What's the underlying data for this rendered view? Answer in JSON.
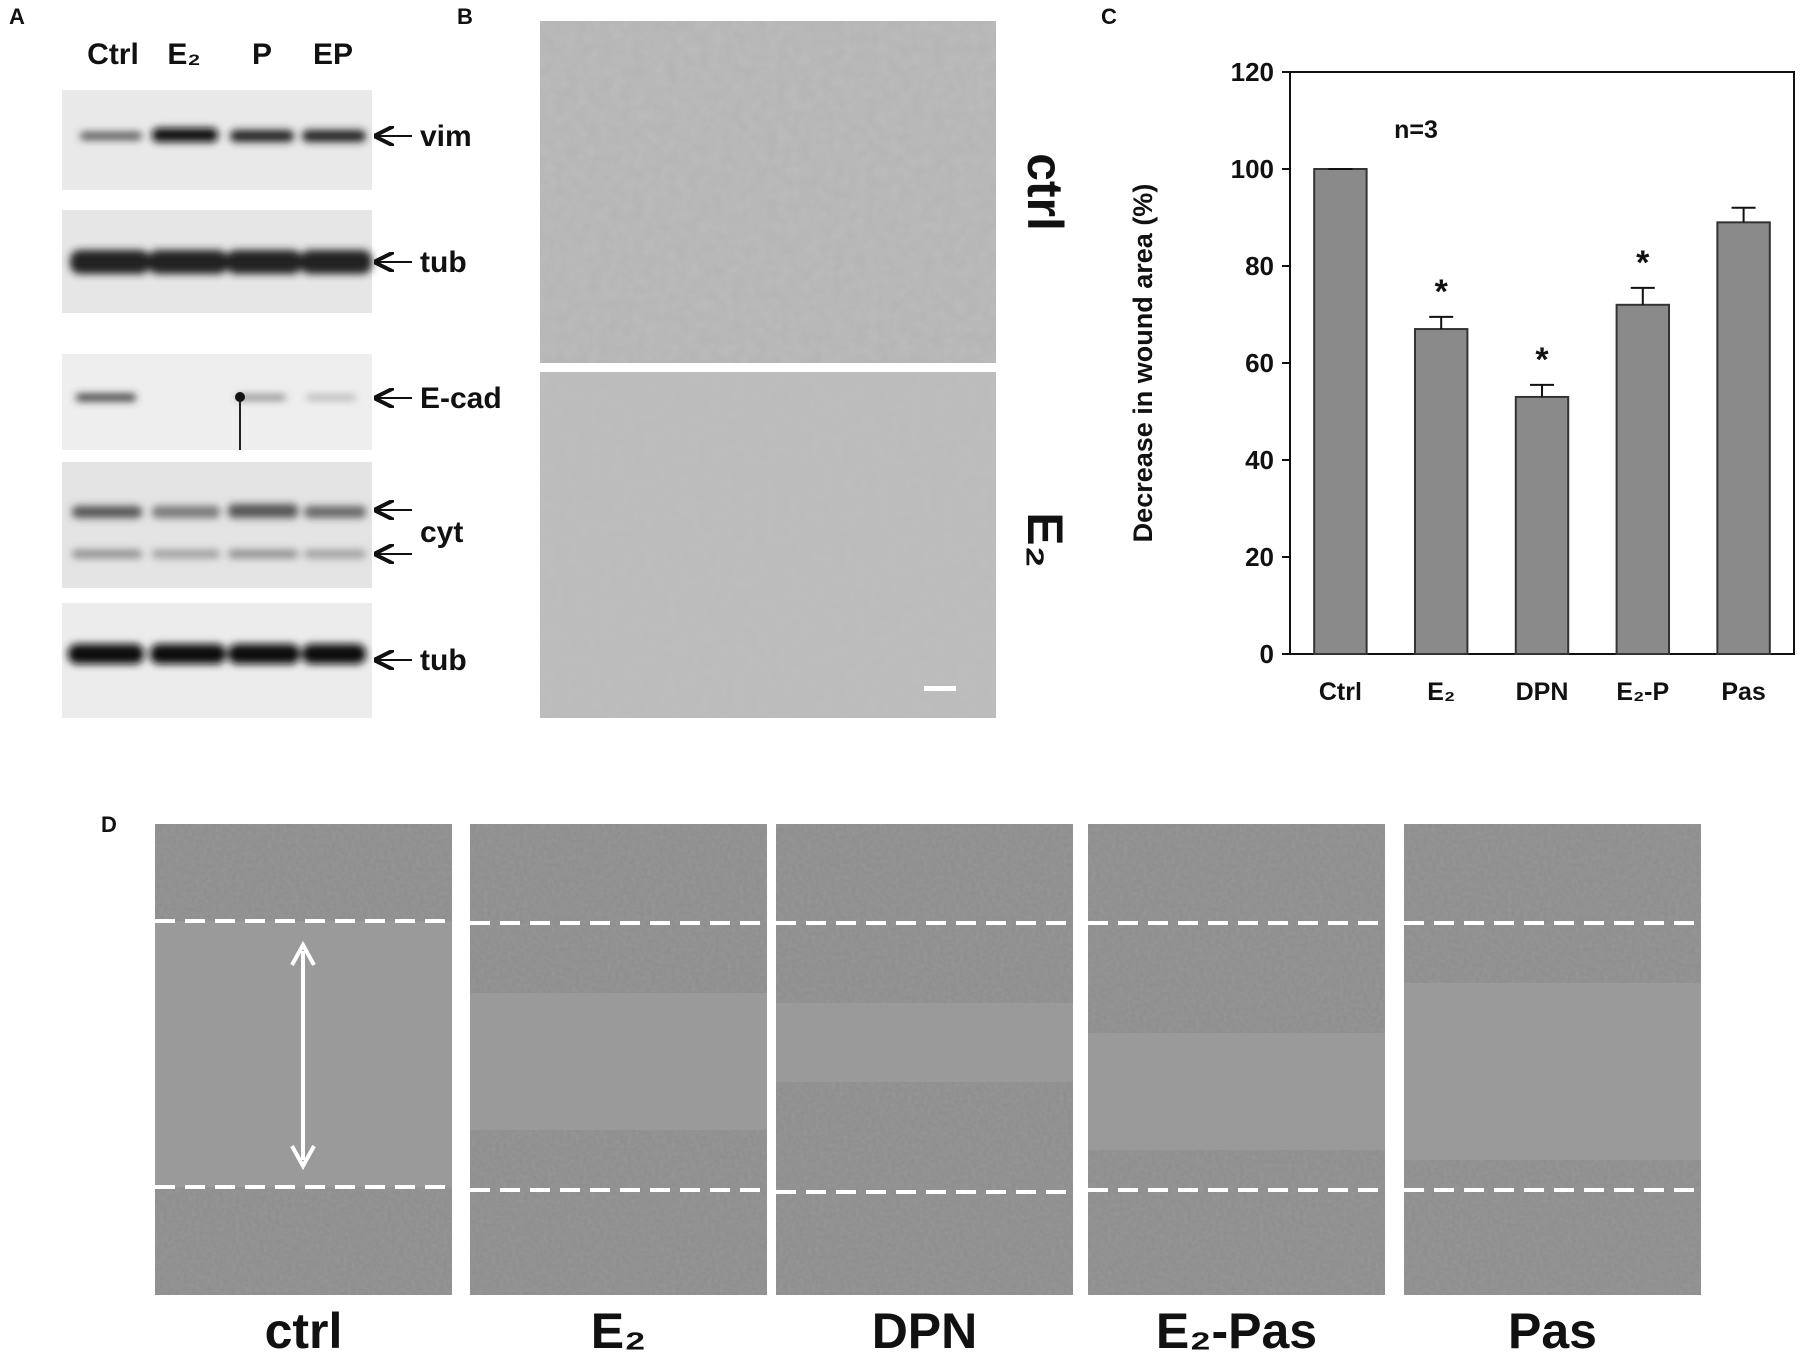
{
  "panels": {
    "a": {
      "letter": "A",
      "lanes": [
        "Ctrl",
        "E₂",
        "P",
        "EP"
      ],
      "rows": [
        "vim",
        "tub",
        "E-cad",
        "cyt",
        "tub"
      ]
    },
    "b": {
      "letter": "B",
      "labels": [
        "ctrl",
        "E₂"
      ]
    },
    "c": {
      "letter": "C"
    },
    "d": {
      "letter": "D",
      "labels": [
        "ctrl",
        "E₂",
        "DPN",
        "E₂-Pas",
        "Pas"
      ]
    }
  },
  "chart_data": {
    "type": "bar",
    "categories": [
      "Ctrl",
      "E₂",
      "DPN",
      "E₂-P",
      "Pas"
    ],
    "values": [
      100,
      67,
      53,
      72,
      89
    ],
    "errors": [
      0,
      2.5,
      2.5,
      3.5,
      3
    ],
    "significance_labels": [
      null,
      "*",
      "*",
      "*",
      null
    ],
    "color": "#8a8a8a",
    "ylabel": "Decrease in wound area (%)",
    "annotation": "n=3",
    "ylim": [
      0,
      120
    ],
    "yticks": [
      0,
      20,
      40,
      60,
      80,
      100,
      120
    ]
  }
}
